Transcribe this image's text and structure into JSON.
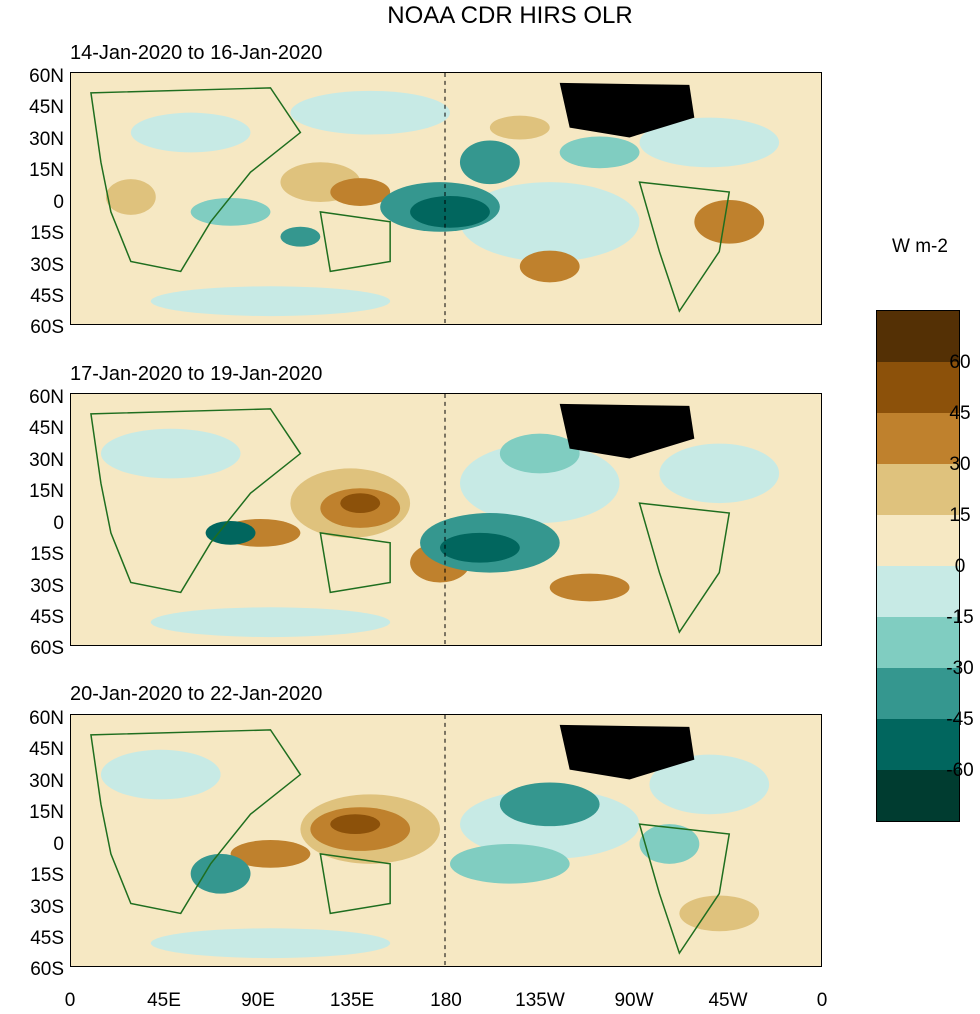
{
  "title": "NOAA CDR HIRS OLR",
  "panels": [
    {
      "title": "14-Jan-2020 to 16-Jan-2020"
    },
    {
      "title": "17-Jan-2020 to 19-Jan-2020"
    },
    {
      "title": "20-Jan-2020 to 22-Jan-2020"
    }
  ],
  "lat_labels": [
    "60N",
    "45N",
    "30N",
    "15N",
    "0",
    "15S",
    "30S",
    "45S",
    "60S"
  ],
  "lon_labels": [
    "0",
    "45E",
    "90E",
    "135E",
    "180",
    "135W",
    "90W",
    "45W",
    "0"
  ],
  "colorbar": {
    "units": "W m-2",
    "levels": [
      "60",
      "45",
      "30",
      "15",
      "0",
      "-15",
      "-30",
      "-45",
      "-60"
    ],
    "colors": [
      "#543005",
      "#8c510a",
      "#bf812d",
      "#dfc27d",
      "#f6e8c3",
      "#c7eae5",
      "#80cdc1",
      "#35978f",
      "#01665e",
      "#003c30"
    ]
  },
  "colors": {
    "coast": "#1f6e1f",
    "usa": "#000000"
  }
}
